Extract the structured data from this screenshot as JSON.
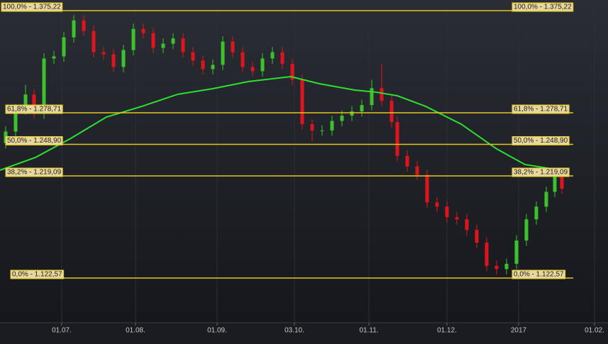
{
  "chart_data": {
    "type": "candlestick",
    "xlim": [
      -17.4,
      154
    ],
    "ylim": [
      1080.3,
      1385.3
    ],
    "xticks": [
      {
        "value": 0,
        "label": "01.07."
      },
      {
        "value": 20.8,
        "label": "01.08."
      },
      {
        "value": 43.8,
        "label": "01.09."
      },
      {
        "value": 65.6,
        "label": "03.10."
      },
      {
        "value": 86.6,
        "label": "01.11."
      },
      {
        "value": 108.6,
        "label": "01.12."
      },
      {
        "value": 128.8,
        "label": "2017"
      },
      {
        "value": 150.2,
        "label": "01.02."
      }
    ],
    "up_color": "#3cc22c",
    "down_color": "#e0141c",
    "x": [
      -15.8,
      -13,
      -10.2,
      -7.8,
      -5,
      -2.2,
      0.6,
      3.4,
      6.2,
      9,
      11.8,
      14.6,
      17.4,
      20.2,
      23,
      25.8,
      28.6,
      31.4,
      34.2,
      37,
      39.8,
      42.6,
      45.4,
      48.2,
      51,
      53.8,
      56.6,
      59.4,
      62.2,
      65,
      67.8,
      70.6,
      73.4,
      76.2,
      79,
      81.8,
      84.6,
      87.4,
      90.2,
      93,
      94.6,
      97.4,
      100.2,
      103,
      105.8,
      108.6,
      111.4,
      114.2,
      117,
      119.8,
      122.6,
      125.4,
      128.2,
      131,
      133.8,
      136.6,
      139,
      141
    ],
    "open": [
      1250,
      1261,
      1282,
      1296,
      1278,
      1330,
      1332,
      1350,
      1366,
      1356,
      1336,
      1334,
      1322,
      1338,
      1358,
      1354,
      1340,
      1344,
      1349,
      1336,
      1328,
      1320,
      1324,
      1346,
      1336,
      1322,
      1318,
      1330,
      1336,
      1325,
      1310,
      1268,
      1262,
      1262,
      1271,
      1276,
      1280,
      1286,
      1302,
      1290,
      1270,
      1238,
      1228,
      1220,
      1194,
      1190,
      1180,
      1178,
      1168,
      1156,
      1134,
      1131,
      1136,
      1158,
      1178,
      1190,
      1204,
      1218
    ],
    "high": [
      1266,
      1287,
      1305,
      1301,
      1335,
      1337,
      1355,
      1371,
      1371,
      1361,
      1341,
      1339,
      1343,
      1363,
      1363,
      1359,
      1349,
      1354,
      1354,
      1341,
      1333,
      1329,
      1351,
      1351,
      1341,
      1327,
      1335,
      1341,
      1341,
      1330,
      1315,
      1273,
      1267,
      1276,
      1281,
      1285,
      1291,
      1310,
      1325,
      1295,
      1275,
      1243,
      1233,
      1225,
      1199,
      1195,
      1185,
      1183,
      1173,
      1161,
      1139,
      1141,
      1163,
      1183,
      1195,
      1209,
      1225,
      1223
    ],
    "low": [
      1245,
      1256,
      1277,
      1273,
      1273,
      1325,
      1327,
      1345,
      1351,
      1331,
      1329,
      1317,
      1317,
      1333,
      1349,
      1335,
      1335,
      1339,
      1331,
      1323,
      1315,
      1315,
      1319,
      1331,
      1317,
      1313,
      1313,
      1325,
      1320,
      1305,
      1263,
      1252,
      1257,
      1257,
      1266,
      1271,
      1275,
      1281,
      1285,
      1265,
      1233,
      1223,
      1215,
      1189,
      1185,
      1175,
      1173,
      1163,
      1151,
      1129,
      1126,
      1126,
      1131,
      1153,
      1173,
      1185,
      1199,
      1202
    ],
    "close": [
      1261,
      1282,
      1296,
      1278,
      1330,
      1332,
      1350,
      1366,
      1356,
      1336,
      1334,
      1322,
      1338,
      1358,
      1354,
      1340,
      1344,
      1349,
      1336,
      1328,
      1320,
      1324,
      1346,
      1336,
      1322,
      1318,
      1330,
      1336,
      1325,
      1310,
      1268,
      1262,
      1262,
      1271,
      1276,
      1280,
      1286,
      1302,
      1290,
      1270,
      1238,
      1228,
      1220,
      1194,
      1190,
      1180,
      1178,
      1168,
      1156,
      1134,
      1131,
      1136,
      1158,
      1178,
      1190,
      1204,
      1218,
      1207
    ],
    "moving_average": {
      "color": "#2ee02e",
      "x": [
        -17.4,
        -7.4,
        2.6,
        12.6,
        22.6,
        32.6,
        42.6,
        52.6,
        64.6,
        72.6,
        82.6,
        88.6,
        94.6,
        102.6,
        112.6,
        122.6,
        130.6,
        140.6
      ],
      "values": [
        1224.5,
        1236.5,
        1254.6,
        1274.7,
        1284.8,
        1296.1,
        1301.5,
        1308.2,
        1312.9,
        1306.2,
        1300.2,
        1298.2,
        1294.8,
        1284.8,
        1268.0,
        1244.6,
        1229.8,
        1224.5
      ]
    },
    "fib_color": "#e6c619",
    "fib_levels": [
      {
        "value": 1375.22,
        "label": "100,0% - 1.375,22"
      },
      {
        "value": 1278.71,
        "label": "61,8% - 1.278,71"
      },
      {
        "value": 1248.9,
        "label": "50,0% - 1.248,90"
      },
      {
        "value": 1219.09,
        "label": "38,2% - 1.219,09"
      },
      {
        "value": 1122.57,
        "label": "0,0% - 1.122,57"
      }
    ]
  }
}
